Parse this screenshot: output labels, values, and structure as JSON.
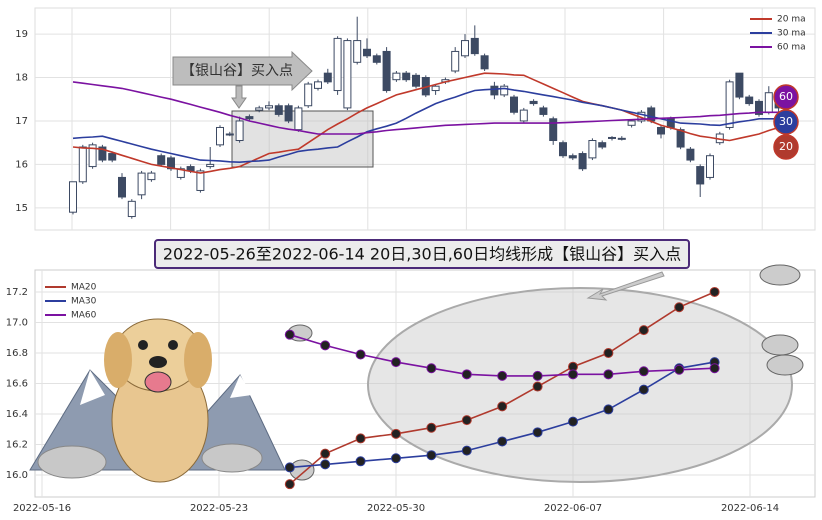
{
  "chart_data": [
    {
      "type": "candlestick",
      "ylim": [
        14.49,
        19.6
      ],
      "yticks": [
        15,
        16,
        17,
        18,
        19
      ],
      "grid": true,
      "up_color": "#ffffff",
      "down_color": "#3d4a63",
      "open": [
        14.9,
        15.6,
        15.95,
        16.4,
        16.25,
        15.7,
        14.8,
        15.3,
        15.65,
        16.2,
        16.15,
        15.7,
        15.95,
        15.4,
        15.95,
        16.45,
        16.7,
        16.55,
        17.1,
        17.25,
        17.3,
        17.35,
        17.35,
        16.8,
        17.35,
        17.75,
        18.1,
        17.7,
        17.3,
        18.35,
        18.65,
        18.5,
        18.6,
        17.95,
        18.1,
        18.05,
        18.0,
        17.7,
        17.9,
        18.15,
        18.5,
        18.9,
        18.5,
        17.8,
        17.6,
        17.55,
        17.0,
        17.45,
        17.3,
        17.05,
        16.5,
        16.2,
        16.25,
        16.15,
        16.5,
        16.6,
        16.58,
        16.9,
        17.0,
        17.3,
        16.85,
        17.05,
        16.8,
        16.35,
        15.95,
        15.7,
        16.5,
        16.85,
        18.1,
        17.55,
        17.45,
        17.2,
        17.5
      ],
      "high": [
        15.6,
        16.45,
        16.5,
        16.45,
        16.3,
        15.8,
        15.2,
        15.85,
        15.85,
        16.25,
        16.2,
        15.95,
        16.0,
        15.9,
        16.4,
        16.9,
        16.75,
        17.1,
        17.15,
        17.35,
        17.45,
        17.4,
        17.4,
        17.35,
        17.9,
        17.95,
        18.2,
        18.95,
        18.9,
        19.4,
        18.9,
        18.55,
        18.7,
        18.15,
        18.15,
        18.1,
        18.05,
        17.85,
        18.0,
        18.7,
        19.0,
        19.2,
        18.55,
        17.9,
        17.85,
        17.6,
        17.3,
        17.5,
        17.35,
        17.1,
        16.55,
        16.25,
        16.3,
        16.6,
        16.55,
        16.65,
        16.65,
        17.0,
        17.25,
        17.35,
        16.9,
        17.1,
        16.85,
        16.4,
        16.0,
        16.25,
        16.75,
        17.95,
        18.1,
        17.6,
        17.5,
        17.8,
        17.6
      ],
      "low": [
        14.85,
        15.55,
        15.9,
        16.05,
        16.05,
        15.2,
        14.75,
        15.2,
        15.6,
        15.95,
        15.85,
        15.65,
        15.8,
        15.35,
        15.9,
        16.4,
        16.65,
        16.5,
        17.0,
        17.2,
        17.25,
        17.1,
        16.95,
        16.75,
        17.3,
        17.7,
        17.85,
        17.6,
        17.25,
        18.3,
        18.45,
        18.3,
        17.65,
        17.9,
        17.9,
        17.75,
        17.55,
        17.6,
        17.85,
        18.1,
        18.45,
        18.5,
        18.15,
        17.5,
        17.55,
        17.15,
        16.95,
        17.35,
        17.1,
        16.45,
        16.15,
        16.1,
        15.85,
        16.1,
        16.35,
        16.55,
        16.55,
        16.85,
        16.95,
        16.95,
        16.6,
        16.8,
        16.35,
        16.05,
        15.25,
        15.65,
        16.45,
        16.8,
        17.5,
        17.35,
        17.1,
        17.15,
        17.2
      ],
      "close": [
        15.6,
        16.4,
        16.45,
        16.1,
        16.1,
        15.25,
        15.15,
        15.8,
        15.8,
        16.0,
        15.9,
        15.9,
        15.85,
        15.85,
        16.0,
        16.85,
        16.7,
        17.0,
        17.05,
        17.3,
        17.35,
        17.15,
        17.0,
        17.3,
        17.85,
        17.9,
        17.9,
        18.9,
        18.85,
        18.85,
        18.5,
        18.35,
        17.7,
        18.1,
        17.95,
        17.8,
        17.6,
        17.8,
        17.95,
        18.6,
        18.85,
        18.55,
        18.2,
        17.6,
        17.8,
        17.2,
        17.25,
        17.4,
        17.15,
        16.55,
        16.2,
        16.15,
        15.9,
        16.55,
        16.4,
        16.62,
        16.6,
        17.0,
        17.2,
        17.0,
        16.7,
        16.85,
        16.4,
        16.1,
        15.55,
        16.2,
        16.7,
        17.9,
        17.55,
        17.4,
        17.15,
        17.65,
        17.3
      ],
      "series": [
        {
          "name": "20 ma",
          "color": "#c0392b",
          "values": [
            16.4,
            16.38,
            16.37,
            16.35,
            16.28,
            16.21,
            16.14,
            16.07,
            16.0,
            15.96,
            15.92,
            15.88,
            15.84,
            15.8,
            15.84,
            15.88,
            15.91,
            15.95,
            16.05,
            16.15,
            16.25,
            16.28,
            16.32,
            16.35,
            16.5,
            16.65,
            16.8,
            16.93,
            17.05,
            17.18,
            17.3,
            17.4,
            17.5,
            17.6,
            17.66,
            17.72,
            17.78,
            17.84,
            17.9,
            17.95,
            18.0,
            18.05,
            18.1,
            18.09,
            18.08,
            18.06,
            18.05,
            17.95,
            17.85,
            17.75,
            17.65,
            17.55,
            17.45,
            17.4,
            17.35,
            17.3,
            17.25,
            17.16,
            17.08,
            16.99,
            16.9,
            16.84,
            16.78,
            16.71,
            16.65,
            16.62,
            16.58,
            16.55,
            16.6,
            16.65,
            16.7,
            16.78,
            16.85
          ]
        },
        {
          "name": "30 ma",
          "color": "#2c3e9e",
          "values": [
            16.6,
            16.62,
            16.63,
            16.65,
            16.59,
            16.53,
            16.47,
            16.41,
            16.35,
            16.3,
            16.25,
            16.2,
            16.15,
            16.1,
            16.09,
            16.08,
            16.06,
            16.05,
            16.07,
            16.08,
            16.1,
            16.17,
            16.23,
            16.3,
            16.33,
            16.35,
            16.38,
            16.4,
            16.52,
            16.63,
            16.75,
            16.82,
            16.88,
            16.95,
            17.06,
            17.18,
            17.29,
            17.4,
            17.48,
            17.55,
            17.63,
            17.7,
            17.72,
            17.73,
            17.75,
            17.71,
            17.68,
            17.64,
            17.6,
            17.56,
            17.52,
            17.48,
            17.43,
            17.39,
            17.35,
            17.3,
            17.25,
            17.2,
            17.15,
            17.1,
            17.05,
            17.0,
            16.95,
            16.94,
            16.93,
            16.91,
            16.9,
            16.94,
            16.98,
            17.01,
            17.05,
            17.05,
            17.05
          ]
        },
        {
          "name": "60 ma",
          "color": "#7b12a1",
          "values": [
            17.9,
            17.87,
            17.84,
            17.81,
            17.78,
            17.75,
            17.7,
            17.65,
            17.6,
            17.55,
            17.5,
            17.44,
            17.38,
            17.32,
            17.26,
            17.2,
            17.13,
            17.07,
            17.0,
            16.95,
            16.9,
            16.85,
            16.81,
            16.78,
            16.74,
            16.7,
            16.7,
            16.7,
            16.7,
            16.7,
            16.73,
            16.75,
            16.78,
            16.8,
            16.82,
            16.84,
            16.86,
            16.88,
            16.9,
            16.91,
            16.92,
            16.93,
            16.94,
            16.95,
            16.95,
            16.95,
            16.95,
            16.95,
            16.95,
            16.95,
            16.96,
            16.97,
            16.98,
            16.99,
            17.0,
            17.01,
            17.02,
            17.03,
            17.04,
            17.05,
            17.06,
            17.07,
            17.08,
            17.09,
            17.1,
            17.12,
            17.13,
            17.15,
            17.17,
            17.18,
            17.2,
            17.2,
            17.2
          ]
        }
      ],
      "annotation": "【银山谷】买入点",
      "badges": [
        {
          "label": "60",
          "color": "#7b12a1"
        },
        {
          "label": "30",
          "color": "#2c3e9e"
        },
        {
          "label": "20",
          "color": "#b03a2e"
        }
      ]
    },
    {
      "type": "line",
      "title": "2022-05-26至2022-06-14 20日,30日,60日均线形成【银山谷】买入点",
      "categories": [
        "2022-05-16",
        null,
        null,
        null,
        null,
        "2022-05-23",
        null,
        null,
        null,
        null,
        "2022-05-30",
        null,
        null,
        null,
        null,
        "2022-06-07",
        null,
        null,
        null,
        null,
        "2022-06-14"
      ],
      "ylim": [
        15.856,
        17.344
      ],
      "yticks": [
        {
          "value": 16,
          "label": "16.0"
        },
        16.2,
        16.4,
        16.6,
        16.8,
        {
          "value": 17,
          "label": "17.0"
        },
        17.2
      ],
      "grid": true,
      "series": [
        {
          "name": "MA20",
          "color": "#b03a2e",
          "values": [
            null,
            null,
            null,
            null,
            null,
            null,
            null,
            15.94,
            16.14,
            16.24,
            16.27,
            16.31,
            16.36,
            16.45,
            16.58,
            16.71,
            16.8,
            16.95,
            17.1,
            17.2,
            null
          ]
        },
        {
          "name": "MA30",
          "color": "#2c3e9e",
          "values": [
            null,
            null,
            null,
            null,
            null,
            null,
            null,
            16.05,
            16.07,
            16.09,
            16.11,
            16.13,
            16.16,
            16.22,
            16.28,
            16.35,
            16.43,
            16.56,
            16.7,
            16.74,
            null
          ]
        },
        {
          "name": "MA60",
          "color": "#7b12a1",
          "values": [
            null,
            null,
            null,
            null,
            null,
            null,
            null,
            16.92,
            16.85,
            16.79,
            16.74,
            16.7,
            16.66,
            16.65,
            16.65,
            16.66,
            16.66,
            16.68,
            16.69,
            16.7,
            null
          ]
        }
      ]
    }
  ]
}
